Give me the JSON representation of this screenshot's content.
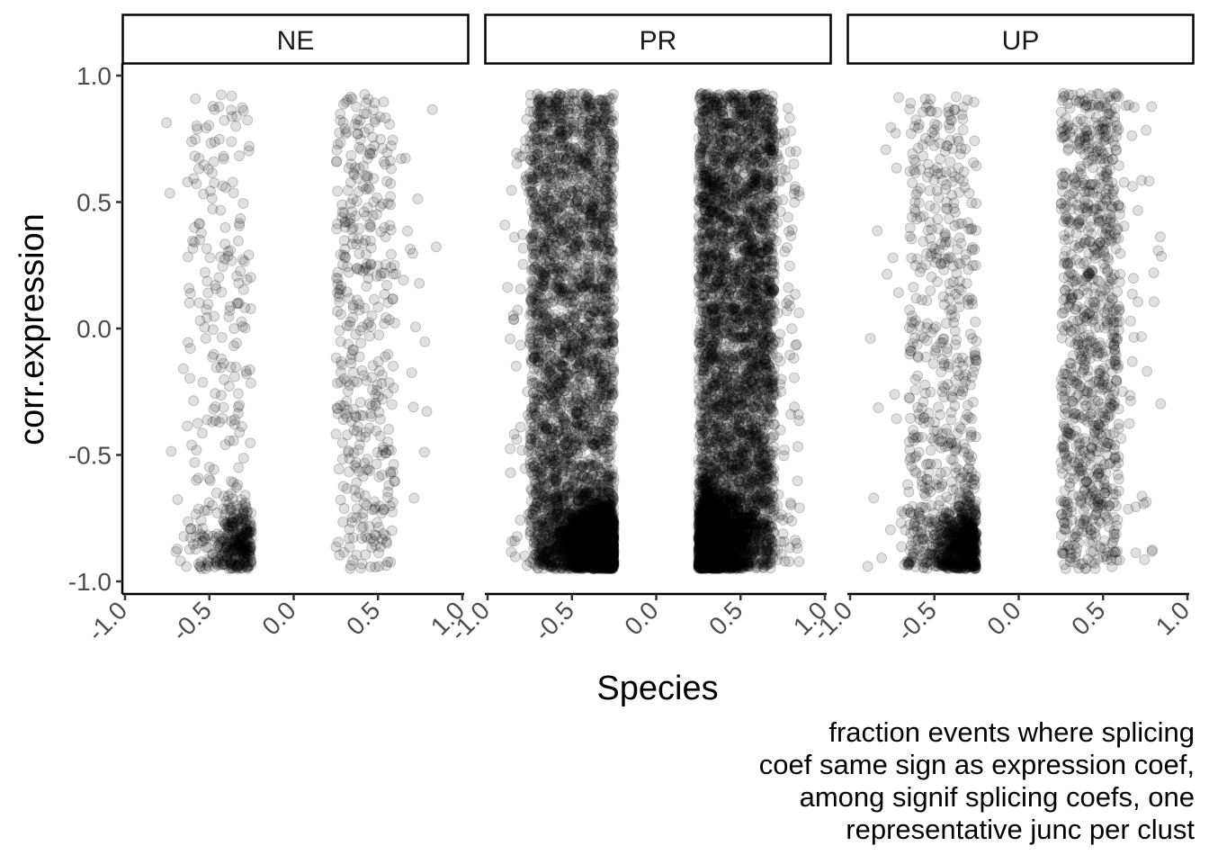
{
  "chart_data": {
    "type": "scatter",
    "facets": [
      {
        "label": "NE",
        "density": "low"
      },
      {
        "label": "PR",
        "density": "high"
      },
      {
        "label": "UP",
        "density": "medium"
      }
    ],
    "xlabel": "Species",
    "ylabel": "corr.expression",
    "xlim": [
      -1.0,
      1.0
    ],
    "ylim": [
      -1.0,
      1.0
    ],
    "x_ticks": [
      -1.0,
      -0.5,
      0.0,
      0.5,
      1.0
    ],
    "x_tick_labels": [
      "-1.0",
      "-0.5",
      "0.0",
      "0.5",
      "1.0"
    ],
    "y_ticks": [
      -1.0,
      -0.5,
      0.0,
      0.5,
      1.0
    ],
    "y_tick_labels": [
      "-1.0",
      "-0.5",
      "0.0",
      "0.5",
      "1.0"
    ],
    "point_color": "#000000",
    "point_alpha": 0.12,
    "grid": false,
    "legend": "none",
    "clusters": [
      {
        "x_range": [
          -0.7,
          -0.25
        ],
        "y_concentration": "dense near -0.85"
      },
      {
        "x_range": [
          0.25,
          0.7
        ],
        "y_concentration": "spread across range"
      }
    ],
    "caption_lines": [
      "fraction events where splicing",
      "coef same sign as expression coef,",
      "among signif splicing coefs, one",
      "representative junc per clust"
    ]
  }
}
